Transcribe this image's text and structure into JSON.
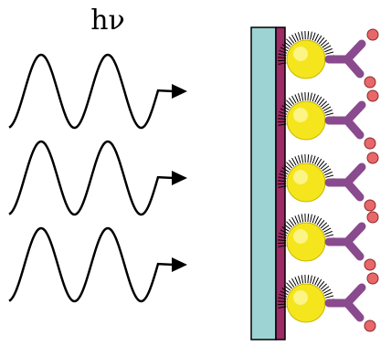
{
  "label": "hν"
}
